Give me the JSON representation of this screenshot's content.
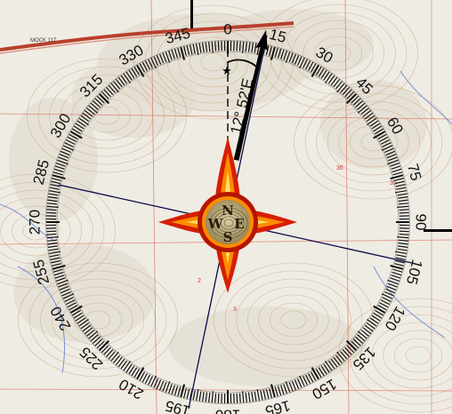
{
  "map": {
    "road_label": "MOCK 117",
    "section_numbers": [
      "36",
      "35",
      "3",
      "2"
    ],
    "colors": {
      "paper": "#efece4",
      "contour": "#c8a27a",
      "grid": "#d96a55",
      "road": "#b8402c",
      "water": "#5b7fd1"
    }
  },
  "compass": {
    "declination_text": "12° 52'E",
    "bearings": [
      0,
      15,
      30,
      45,
      60,
      75,
      90,
      105,
      120,
      135,
      150,
      165,
      180,
      195,
      210,
      225,
      240,
      255,
      270,
      285,
      300,
      315,
      330,
      345
    ],
    "bearing_labels": [
      "0",
      "15",
      "30",
      "45",
      "60",
      "75",
      "90",
      "105",
      "120",
      "135",
      "150",
      "165",
      "180",
      "195",
      "210",
      "225",
      "240",
      "255",
      "270",
      "285",
      "300",
      "315",
      "330",
      "345"
    ],
    "cardinals": {
      "n": "N",
      "e": "E",
      "s": "S",
      "w": "W"
    },
    "true_north_icon": "star-icon",
    "magnetic_north_icon": "arrow-icon",
    "rose_colors": {
      "outer": "#d61e00",
      "middle": "#ff8c00",
      "inner": "#ffe066",
      "disk_ring": "#b41500",
      "disk_face": "#9c8b5c"
    }
  }
}
